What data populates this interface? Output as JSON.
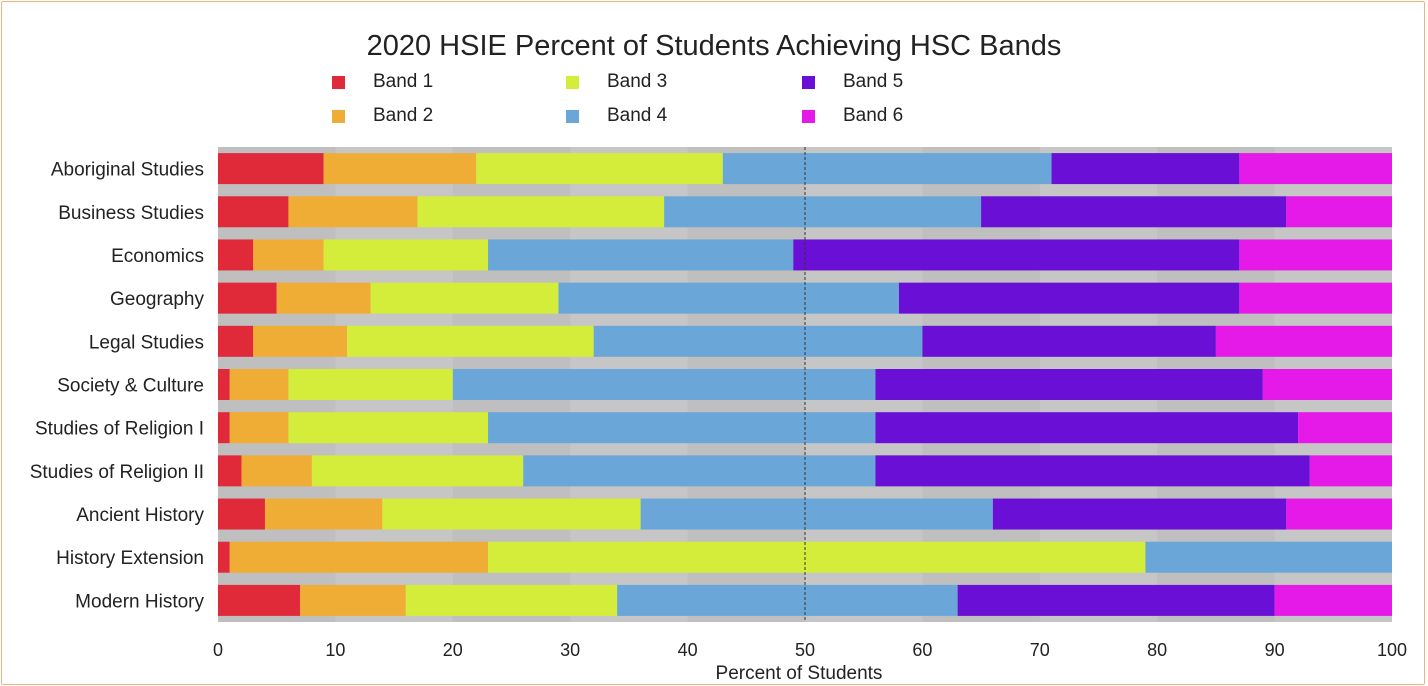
{
  "chart_data": {
    "type": "bar",
    "orientation": "horizontal",
    "stacked": true,
    "title": "2020 HSIE Percent of Students Achieving HSC Bands",
    "xlabel": "Percent of Students",
    "ylabel": "",
    "xlim": [
      0,
      100
    ],
    "xticks": [
      0,
      10,
      20,
      30,
      40,
      50,
      60,
      70,
      80,
      90,
      100
    ],
    "reference_line_x": 50,
    "legend_position": "top",
    "categories": [
      "Aboriginal Studies",
      "Business Studies",
      "Economics",
      "Geography",
      "Legal Studies",
      "Society & Culture",
      "Studies of Religion I",
      "Studies of Religion II",
      "Ancient History",
      "History Extension",
      "Modern History"
    ],
    "series": [
      {
        "name": "Band 1",
        "color": "#e02a3a",
        "values": [
          9,
          6,
          3,
          5,
          3,
          1,
          1,
          2,
          4,
          1,
          7
        ]
      },
      {
        "name": "Band 2",
        "color": "#f0ad35",
        "values": [
          13,
          11,
          6,
          8,
          8,
          5,
          5,
          6,
          10,
          22,
          9
        ]
      },
      {
        "name": "Band 3",
        "color": "#d4ec3a",
        "values": [
          21,
          21,
          14,
          16,
          21,
          14,
          17,
          18,
          22,
          56,
          18
        ]
      },
      {
        "name": "Band 4",
        "color": "#6aa7d8",
        "values": [
          28,
          27,
          26,
          29,
          28,
          36,
          33,
          30,
          30,
          21,
          29
        ]
      },
      {
        "name": "Band 5",
        "color": "#6a10d6",
        "values": [
          16,
          26,
          38,
          29,
          25,
          33,
          36,
          37,
          25,
          0,
          27
        ]
      },
      {
        "name": "Band 6",
        "color": "#e51ae8",
        "values": [
          13,
          9,
          13,
          13,
          15,
          11,
          8,
          7,
          9,
          0,
          10
        ]
      }
    ]
  }
}
